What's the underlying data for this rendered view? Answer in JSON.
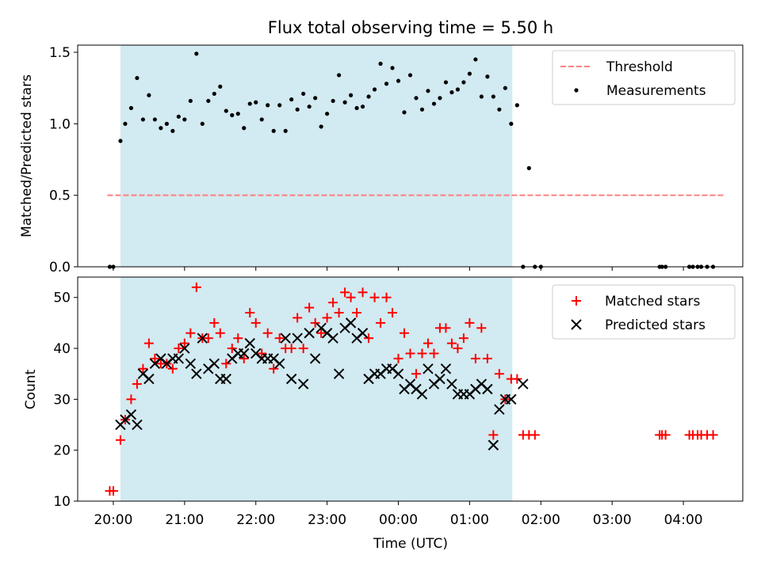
{
  "chart_data": [
    {
      "type": "scatter",
      "title": "Flux total observing time = 5.50 h",
      "xlabel": "",
      "ylabel": "Matched/Predicted stars",
      "xlim": [
        "19:30",
        "04:50"
      ],
      "ylim": [
        0,
        1.55
      ],
      "yticks": [
        0.0,
        0.5,
        1.0,
        1.5
      ],
      "yticklabels": [
        "0.0",
        "0.5",
        "1.0",
        "1.5"
      ],
      "grid": false,
      "legend_position": "top-right",
      "shaded_interval": [
        "20:06",
        "01:36"
      ],
      "shade_color": "#add8e6",
      "threshold": {
        "name": "Threshold",
        "value": 0.5,
        "x": [
          "19:55",
          "04:35"
        ],
        "color": "#ff7f7f",
        "style": "dashed"
      },
      "series": [
        {
          "name": "Measurements",
          "marker": "dot",
          "color": "#000000",
          "points": [
            [
              "19:57",
              0.0
            ],
            [
              "20:00",
              0.0
            ],
            [
              "20:06",
              0.88
            ],
            [
              "20:10",
              1.0
            ],
            [
              "20:15",
              1.11
            ],
            [
              "20:20",
              1.32
            ],
            [
              "20:25",
              1.03
            ],
            [
              "20:30",
              1.2
            ],
            [
              "20:35",
              1.03
            ],
            [
              "20:40",
              0.97
            ],
            [
              "20:45",
              1.0
            ],
            [
              "20:50",
              0.95
            ],
            [
              "20:55",
              1.05
            ],
            [
              "21:00",
              1.03
            ],
            [
              "21:05",
              1.16
            ],
            [
              "21:10",
              1.49
            ],
            [
              "21:15",
              1.0
            ],
            [
              "21:20",
              1.16
            ],
            [
              "21:25",
              1.21
            ],
            [
              "21:30",
              1.26
            ],
            [
              "21:35",
              1.09
            ],
            [
              "21:40",
              1.06
            ],
            [
              "21:45",
              1.07
            ],
            [
              "21:50",
              0.97
            ],
            [
              "21:55",
              1.14
            ],
            [
              "22:00",
              1.15
            ],
            [
              "22:05",
              1.03
            ],
            [
              "22:10",
              1.13
            ],
            [
              "22:15",
              0.95
            ],
            [
              "22:20",
              1.13
            ],
            [
              "22:25",
              0.95
            ],
            [
              "22:30",
              1.17
            ],
            [
              "22:35",
              1.1
            ],
            [
              "22:40",
              1.21
            ],
            [
              "22:45",
              1.12
            ],
            [
              "22:50",
              1.18
            ],
            [
              "22:55",
              0.98
            ],
            [
              "23:00",
              1.07
            ],
            [
              "23:05",
              1.16
            ],
            [
              "23:10",
              1.34
            ],
            [
              "23:15",
              1.15
            ],
            [
              "23:20",
              1.2
            ],
            [
              "23:25",
              1.11
            ],
            [
              "23:30",
              1.12
            ],
            [
              "23:35",
              1.19
            ],
            [
              "23:40",
              1.24
            ],
            [
              "23:45",
              1.42
            ],
            [
              "23:50",
              1.28
            ],
            [
              "23:55",
              1.39
            ],
            [
              "00:00",
              1.3
            ],
            [
              "00:05",
              1.08
            ],
            [
              "00:10",
              1.34
            ],
            [
              "00:15",
              1.18
            ],
            [
              "00:20",
              1.1
            ],
            [
              "00:25",
              1.23
            ],
            [
              "00:30",
              1.14
            ],
            [
              "00:35",
              1.18
            ],
            [
              "00:40",
              1.29
            ],
            [
              "00:45",
              1.22
            ],
            [
              "00:50",
              1.24
            ],
            [
              "00:55",
              1.29
            ],
            [
              "01:00",
              1.35
            ],
            [
              "01:05",
              1.45
            ],
            [
              "01:10",
              1.19
            ],
            [
              "01:15",
              1.33
            ],
            [
              "01:20",
              1.19
            ],
            [
              "01:25",
              1.1
            ],
            [
              "01:30",
              1.25
            ],
            [
              "01:35",
              1.0
            ],
            [
              "01:40",
              1.13
            ],
            [
              "01:45",
              0.0
            ],
            [
              "01:50",
              0.69
            ],
            [
              "01:55",
              0.0
            ],
            [
              "02:00",
              0.0
            ],
            [
              "03:40",
              0.0
            ],
            [
              "03:42",
              0.0
            ],
            [
              "03:45",
              0.0
            ],
            [
              "04:05",
              0.0
            ],
            [
              "04:08",
              0.0
            ],
            [
              "04:12",
              0.0
            ],
            [
              "04:15",
              0.0
            ],
            [
              "04:20",
              0.0
            ],
            [
              "04:25",
              0.0
            ]
          ]
        }
      ]
    },
    {
      "type": "scatter",
      "title": "",
      "xlabel": "Time (UTC)",
      "ylabel": "Count",
      "xlim": [
        "19:30",
        "04:50"
      ],
      "ylim": [
        10,
        54
      ],
      "xticklabels": [
        "20:00",
        "21:00",
        "22:00",
        "23:00",
        "00:00",
        "01:00",
        "02:00",
        "03:00",
        "04:00"
      ],
      "yticks": [
        10,
        20,
        30,
        40,
        50
      ],
      "yticklabels": [
        "10",
        "20",
        "30",
        "40",
        "50"
      ],
      "grid": false,
      "legend_position": "top-right",
      "shaded_interval": [
        "20:06",
        "01:36"
      ],
      "shade_color": "#add8e6",
      "series": [
        {
          "name": "Matched stars",
          "marker": "plus",
          "color": "#ff0000",
          "points": [
            [
              "19:57",
              12
            ],
            [
              "20:00",
              12
            ],
            [
              "20:06",
              22
            ],
            [
              "20:10",
              26
            ],
            [
              "20:15",
              30
            ],
            [
              "20:20",
              33
            ],
            [
              "20:25",
              36
            ],
            [
              "20:30",
              41
            ],
            [
              "20:35",
              38
            ],
            [
              "20:40",
              37
            ],
            [
              "20:45",
              37
            ],
            [
              "20:50",
              36
            ],
            [
              "20:55",
              40
            ],
            [
              "21:00",
              41
            ],
            [
              "21:05",
              43
            ],
            [
              "21:10",
              52
            ],
            [
              "21:15",
              42
            ],
            [
              "21:20",
              42
            ],
            [
              "21:25",
              45
            ],
            [
              "21:30",
              43
            ],
            [
              "21:35",
              37
            ],
            [
              "21:40",
              40
            ],
            [
              "21:45",
              42
            ],
            [
              "21:50",
              38
            ],
            [
              "21:55",
              47
            ],
            [
              "22:00",
              45
            ],
            [
              "22:05",
              39
            ],
            [
              "22:10",
              43
            ],
            [
              "22:15",
              36
            ],
            [
              "22:20",
              42
            ],
            [
              "22:25",
              40
            ],
            [
              "22:30",
              40
            ],
            [
              "22:35",
              46
            ],
            [
              "22:40",
              40
            ],
            [
              "22:45",
              48
            ],
            [
              "22:50",
              45
            ],
            [
              "22:55",
              43
            ],
            [
              "23:00",
              46
            ],
            [
              "23:05",
              49
            ],
            [
              "23:10",
              47
            ],
            [
              "23:15",
              51
            ],
            [
              "23:20",
              50
            ],
            [
              "23:25",
              47
            ],
            [
              "23:30",
              51
            ],
            [
              "23:35",
              42
            ],
            [
              "23:40",
              50
            ],
            [
              "23:45",
              45
            ],
            [
              "23:50",
              50
            ],
            [
              "23:55",
              47
            ],
            [
              "00:00",
              38
            ],
            [
              "00:05",
              43
            ],
            [
              "00:10",
              39
            ],
            [
              "00:15",
              35
            ],
            [
              "00:20",
              39
            ],
            [
              "00:25",
              41
            ],
            [
              "00:30",
              39
            ],
            [
              "00:35",
              44
            ],
            [
              "00:40",
              44
            ],
            [
              "00:45",
              41
            ],
            [
              "00:50",
              40
            ],
            [
              "00:55",
              42
            ],
            [
              "01:00",
              45
            ],
            [
              "01:05",
              38
            ],
            [
              "01:10",
              44
            ],
            [
              "01:15",
              38
            ],
            [
              "01:20",
              23
            ],
            [
              "01:25",
              35
            ],
            [
              "01:30",
              30
            ],
            [
              "01:35",
              34
            ],
            [
              "01:40",
              34
            ],
            [
              "01:45",
              23
            ],
            [
              "01:50",
              23
            ],
            [
              "01:55",
              23
            ],
            [
              "03:40",
              23
            ],
            [
              "03:42",
              23
            ],
            [
              "03:45",
              23
            ],
            [
              "04:05",
              23
            ],
            [
              "04:08",
              23
            ],
            [
              "04:12",
              23
            ],
            [
              "04:15",
              23
            ],
            [
              "04:20",
              23
            ],
            [
              "04:25",
              23
            ]
          ]
        },
        {
          "name": "Predicted stars",
          "marker": "x",
          "color": "#000000",
          "points": [
            [
              "20:06",
              25
            ],
            [
              "20:10",
              26
            ],
            [
              "20:15",
              27
            ],
            [
              "20:20",
              25
            ],
            [
              "20:25",
              35
            ],
            [
              "20:30",
              34
            ],
            [
              "20:35",
              37
            ],
            [
              "20:40",
              38
            ],
            [
              "20:45",
              37
            ],
            [
              "20:50",
              38
            ],
            [
              "20:55",
              38
            ],
            [
              "21:00",
              40
            ],
            [
              "21:05",
              37
            ],
            [
              "21:10",
              35
            ],
            [
              "21:15",
              42
            ],
            [
              "21:20",
              36
            ],
            [
              "21:25",
              37
            ],
            [
              "21:30",
              34
            ],
            [
              "21:35",
              34
            ],
            [
              "21:40",
              38
            ],
            [
              "21:45",
              39
            ],
            [
              "21:50",
              39
            ],
            [
              "21:55",
              41
            ],
            [
              "22:00",
              39
            ],
            [
              "22:05",
              38
            ],
            [
              "22:10",
              38
            ],
            [
              "22:15",
              38
            ],
            [
              "22:20",
              37
            ],
            [
              "22:25",
              42
            ],
            [
              "22:30",
              34
            ],
            [
              "22:35",
              42
            ],
            [
              "22:40",
              33
            ],
            [
              "22:45",
              43
            ],
            [
              "22:50",
              38
            ],
            [
              "22:55",
              44
            ],
            [
              "23:00",
              43
            ],
            [
              "23:05",
              42
            ],
            [
              "23:10",
              35
            ],
            [
              "23:15",
              44
            ],
            [
              "23:20",
              45
            ],
            [
              "23:25",
              42
            ],
            [
              "23:30",
              43
            ],
            [
              "23:35",
              34
            ],
            [
              "23:40",
              35
            ],
            [
              "23:45",
              35
            ],
            [
              "23:50",
              36
            ],
            [
              "23:55",
              36
            ],
            [
              "00:00",
              35
            ],
            [
              "00:05",
              32
            ],
            [
              "00:10",
              33
            ],
            [
              "00:15",
              32
            ],
            [
              "00:20",
              31
            ],
            [
              "00:25",
              36
            ],
            [
              "00:30",
              33
            ],
            [
              "00:35",
              34
            ],
            [
              "00:40",
              36
            ],
            [
              "00:45",
              33
            ],
            [
              "00:50",
              31
            ],
            [
              "00:55",
              31
            ],
            [
              "01:00",
              31
            ],
            [
              "01:05",
              32
            ],
            [
              "01:10",
              33
            ],
            [
              "01:15",
              32
            ],
            [
              "01:20",
              21
            ],
            [
              "01:25",
              28
            ],
            [
              "01:30",
              30
            ],
            [
              "01:35",
              30
            ],
            [
              "01:45",
              33
            ]
          ]
        }
      ]
    }
  ],
  "legend_top": {
    "threshold_label": "Threshold",
    "measurements_label": "Measurements"
  },
  "legend_bottom": {
    "matched_label": "Matched stars",
    "predicted_label": "Predicted stars"
  }
}
